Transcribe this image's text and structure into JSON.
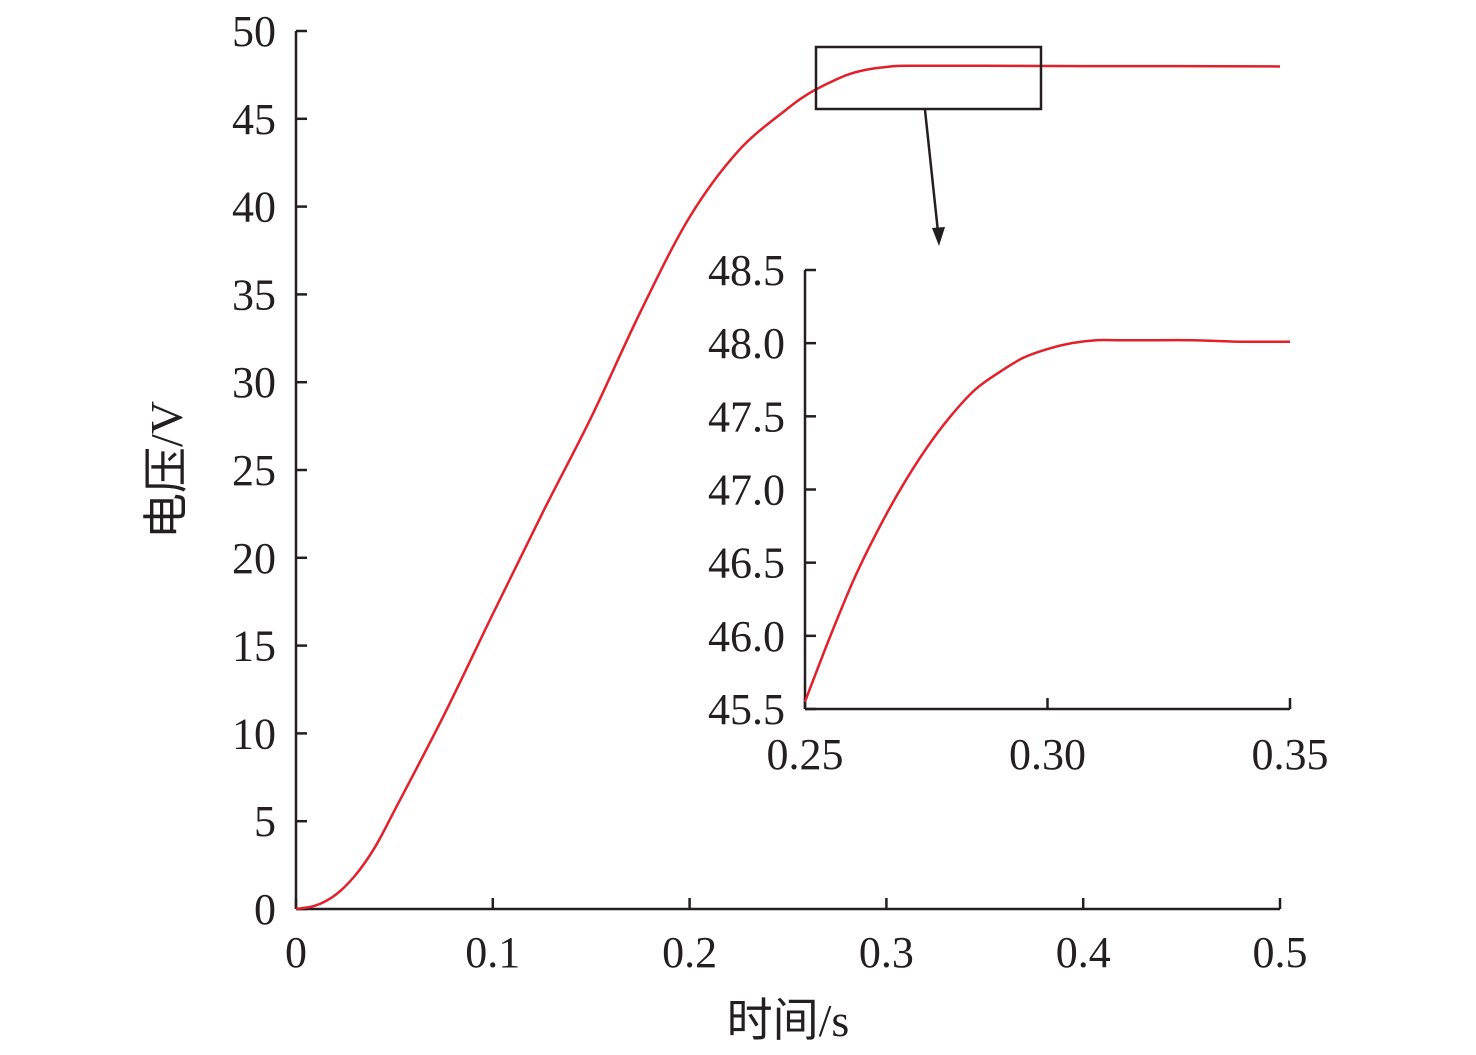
{
  "chart_data": [
    {
      "type": "line",
      "xlabel": "时间/s",
      "ylabel": "电压/V",
      "xlim": [
        0,
        0.5
      ],
      "ylim": [
        0,
        50
      ],
      "xticks": [
        "0",
        "0.1",
        "0.2",
        "0.3",
        "0.4",
        "0.5"
      ],
      "yticks": [
        "0",
        "5",
        "10",
        "15",
        "20",
        "25",
        "30",
        "35",
        "40",
        "45",
        "50"
      ],
      "grid": false,
      "line_color": "#e3202a",
      "series": [
        {
          "x": [
            0,
            0.01,
            0.02,
            0.03,
            0.04,
            0.05,
            0.075,
            0.1,
            0.125,
            0.15,
            0.175,
            0.2,
            0.225,
            0.25,
            0.26,
            0.27,
            0.28,
            0.29,
            0.3,
            0.31,
            0.35,
            0.4,
            0.45,
            0.5
          ],
          "y": [
            0,
            0.2,
            0.8,
            1.9,
            3.5,
            5.6,
            11.0,
            16.8,
            22.5,
            28.0,
            34.0,
            39.4,
            43.2,
            45.6,
            46.4,
            47.0,
            47.5,
            47.8,
            47.95,
            48.02,
            48.02,
            48.0,
            48.0,
            47.98
          ]
        }
      ],
      "annotation": "zoom box around x 0.25–0.38, y 45.5–48.5 with arrow to inset"
    },
    {
      "type": "line",
      "role": "inset",
      "xlim": [
        0.25,
        0.35
      ],
      "ylim": [
        45.5,
        48.5
      ],
      "xticks": [
        "0.25",
        "0.30",
        "0.35"
      ],
      "yticks": [
        "45.5",
        "46.0",
        "46.5",
        "47.0",
        "47.5",
        "48.0",
        "48.5"
      ],
      "line_color": "#e3202a",
      "series": [
        {
          "x": [
            0.25,
            0.255,
            0.26,
            0.265,
            0.27,
            0.275,
            0.28,
            0.285,
            0.29,
            0.295,
            0.3,
            0.305,
            0.31,
            0.315,
            0.32,
            0.33,
            0.34,
            0.35
          ],
          "y": [
            45.55,
            45.98,
            46.38,
            46.72,
            47.02,
            47.28,
            47.5,
            47.68,
            47.8,
            47.9,
            47.96,
            48.0,
            48.02,
            48.02,
            48.02,
            48.02,
            48.01,
            48.01
          ]
        }
      ]
    }
  ]
}
